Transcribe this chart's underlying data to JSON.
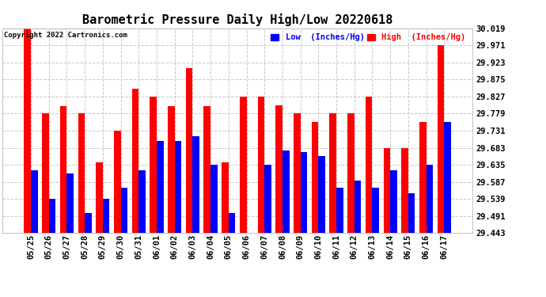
{
  "title": "Barometric Pressure Daily High/Low 20220618",
  "copyright": "Copyright 2022 Cartronics.com",
  "legend_low_label": "Low  (Inches/Hg)",
  "legend_high_label": "High  (Inches/Hg)",
  "dates": [
    "05/25",
    "05/26",
    "05/27",
    "05/28",
    "05/29",
    "05/30",
    "05/31",
    "06/01",
    "06/02",
    "06/03",
    "06/04",
    "06/05",
    "06/06",
    "06/07",
    "06/08",
    "06/09",
    "06/10",
    "06/11",
    "06/12",
    "06/13",
    "06/14",
    "06/15",
    "06/16",
    "06/17"
  ],
  "high_values": [
    30.019,
    29.779,
    29.799,
    29.779,
    29.641,
    29.731,
    29.849,
    29.827,
    29.799,
    29.907,
    29.799,
    29.641,
    29.827,
    29.827,
    29.803,
    29.779,
    29.755,
    29.779,
    29.779,
    29.827,
    29.683,
    29.683,
    29.755,
    29.971
  ],
  "low_values": [
    29.619,
    29.539,
    29.611,
    29.499,
    29.539,
    29.571,
    29.619,
    29.703,
    29.703,
    29.715,
    29.635,
    29.499,
    29.443,
    29.635,
    29.675,
    29.671,
    29.659,
    29.571,
    29.591,
    29.571,
    29.619,
    29.555,
    29.635,
    29.755
  ],
  "ylim_min": 29.443,
  "ylim_max": 30.019,
  "yticks": [
    29.443,
    29.491,
    29.539,
    29.587,
    29.635,
    29.683,
    29.731,
    29.779,
    29.827,
    29.875,
    29.923,
    29.971,
    30.019
  ],
  "high_color": "#ff0000",
  "low_color": "#0000ff",
  "bg_color": "#ffffff",
  "grid_color": "#c8c8c8",
  "title_fontsize": 11,
  "tick_fontsize": 7.5,
  "bar_width": 0.38
}
